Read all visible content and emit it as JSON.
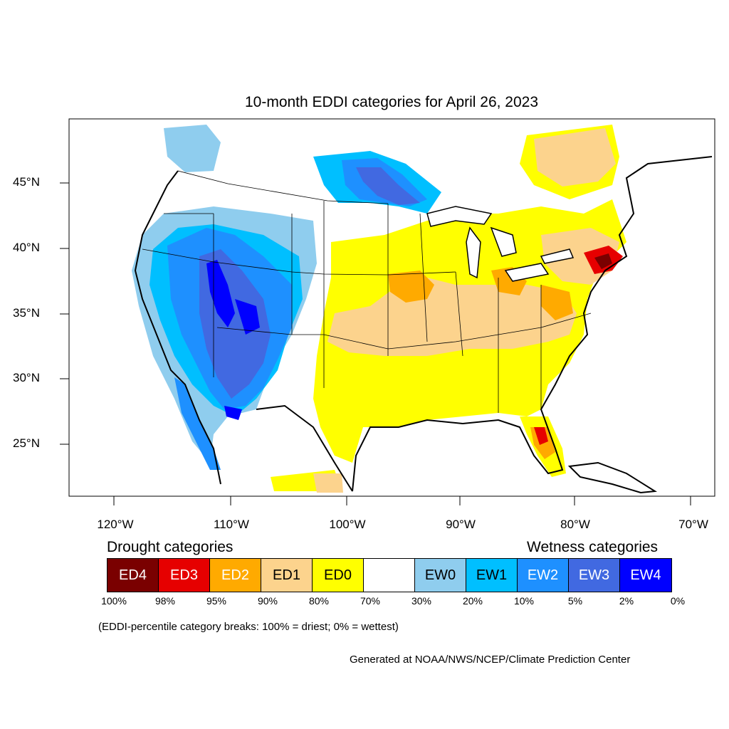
{
  "title": "10-month EDDI categories for April 26, 2023",
  "lat_labels": [
    "45°N",
    "40°N",
    "35°N",
    "30°N",
    "25°N"
  ],
  "lon_labels": [
    "120°W",
    "110°W",
    "100°W",
    "90°W",
    "80°W",
    "70°W"
  ],
  "legend": {
    "drought_heading": "Drought categories",
    "wetness_heading": "Wetness categories",
    "categories": [
      {
        "label": "ED4",
        "color": "#7a0000",
        "text_color": "#ffffff"
      },
      {
        "label": "ED3",
        "color": "#e60000",
        "text_color": "#ffffff"
      },
      {
        "label": "ED2",
        "color": "#ffaa00",
        "text_color": "#ffffff"
      },
      {
        "label": "ED1",
        "color": "#fcd38d",
        "text_color": "#000000"
      },
      {
        "label": "ED0",
        "color": "#ffff00",
        "text_color": "#000000"
      },
      {
        "label": "",
        "color": "#ffffff",
        "text_color": "#000000"
      },
      {
        "label": "EW0",
        "color": "#8fcdee",
        "text_color": "#000000"
      },
      {
        "label": "EW1",
        "color": "#00bfff",
        "text_color": "#000000"
      },
      {
        "label": "EW2",
        "color": "#1e90ff",
        "text_color": "#ffffff"
      },
      {
        "label": "EW3",
        "color": "#4169e1",
        "text_color": "#ffffff"
      },
      {
        "label": "EW4",
        "color": "#0000ff",
        "text_color": "#ffffff"
      }
    ],
    "breaks": [
      "100%",
      "98%",
      "95%",
      "90%",
      "80%",
      "70%",
      "30%",
      "20%",
      "10%",
      "5%",
      "2%",
      "0%"
    ]
  },
  "note": "(EDDI-percentile category breaks: 100% = driest; 0% = wettest)",
  "credit": "Generated at NOAA/NWS/NCEP/Climate Prediction Center"
}
